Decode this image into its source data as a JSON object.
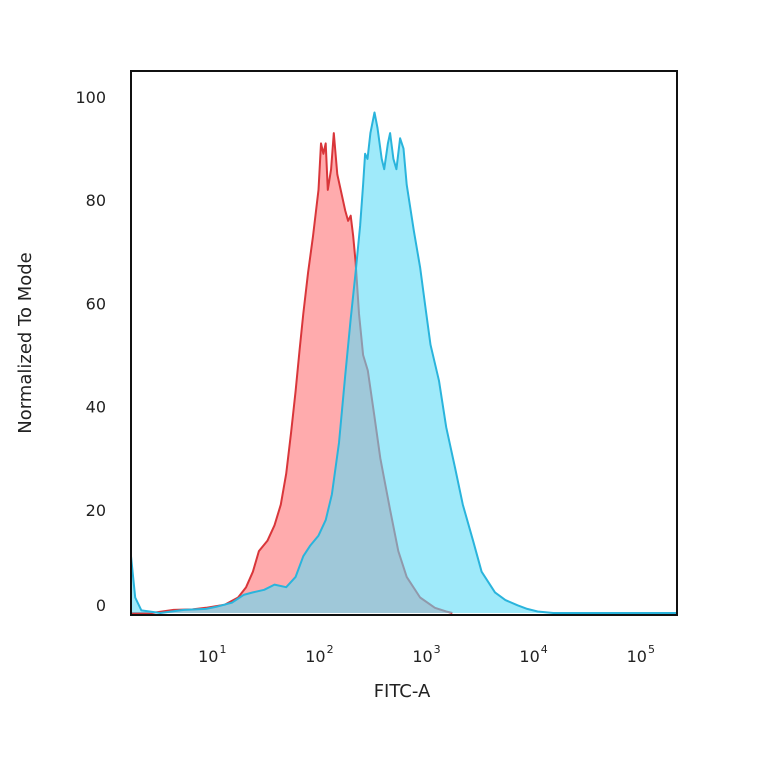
{
  "chart_data": {
    "type": "area",
    "xlabel": "FITC-A",
    "ylabel": "Normalized To Mode",
    "xscale": "log",
    "xlim": [
      1.6,
      200000
    ],
    "ylim": [
      0,
      105
    ],
    "yticks": [
      0,
      20,
      40,
      60,
      80,
      100
    ],
    "xticks": [
      {
        "value": 10,
        "base": "10",
        "exp": "1"
      },
      {
        "value": 100,
        "base": "10",
        "exp": "2"
      },
      {
        "value": 1000,
        "base": "10",
        "exp": "3"
      },
      {
        "value": 10000,
        "base": "10",
        "exp": "4"
      },
      {
        "value": 100000,
        "base": "10",
        "exp": "5"
      }
    ],
    "grid": false,
    "legend": "none",
    "series": [
      {
        "color_fill": "#ff8a8e",
        "color_line": "#d9363a",
        "opacity": 0.72,
        "points": [
          [
            1.6,
            0
          ],
          [
            2.5,
            0
          ],
          [
            4,
            0.6
          ],
          [
            6,
            0.7
          ],
          [
            8,
            1.0
          ],
          [
            12,
            1.6
          ],
          [
            16,
            3.0
          ],
          [
            19,
            5
          ],
          [
            22,
            8
          ],
          [
            25,
            12
          ],
          [
            30,
            14
          ],
          [
            35,
            17
          ],
          [
            40,
            21
          ],
          [
            45,
            27
          ],
          [
            50,
            35
          ],
          [
            55,
            43
          ],
          [
            60,
            51
          ],
          [
            65,
            58
          ],
          [
            72,
            66
          ],
          [
            80,
            73
          ],
          [
            90,
            82
          ],
          [
            95,
            91
          ],
          [
            100,
            89
          ],
          [
            105,
            91
          ],
          [
            110,
            82
          ],
          [
            118,
            86
          ],
          [
            125,
            93
          ],
          [
            135,
            85
          ],
          [
            145,
            82
          ],
          [
            160,
            78
          ],
          [
            170,
            76
          ],
          [
            180,
            77
          ],
          [
            190,
            73
          ],
          [
            200,
            68
          ],
          [
            215,
            58
          ],
          [
            235,
            50
          ],
          [
            260,
            47
          ],
          [
            300,
            38
          ],
          [
            340,
            30
          ],
          [
            370,
            26
          ],
          [
            420,
            20
          ],
          [
            500,
            12
          ],
          [
            600,
            7
          ],
          [
            800,
            3
          ],
          [
            1100,
            1
          ],
          [
            1400,
            0.3
          ],
          [
            1600,
            0
          ]
        ]
      },
      {
        "color_fill": "#5fdcf7",
        "color_line": "#2ab4dc",
        "opacity": 0.6,
        "points": [
          [
            1.6,
            11
          ],
          [
            1.75,
            3
          ],
          [
            2.0,
            0.5
          ],
          [
            3,
            0
          ],
          [
            5,
            0.6
          ],
          [
            8,
            0.8
          ],
          [
            10,
            1.2
          ],
          [
            14,
            2
          ],
          [
            18,
            3.5
          ],
          [
            22,
            4
          ],
          [
            28,
            4.5
          ],
          [
            35,
            5.5
          ],
          [
            45,
            5
          ],
          [
            55,
            7
          ],
          [
            65,
            11
          ],
          [
            75,
            13
          ],
          [
            90,
            15
          ],
          [
            105,
            18
          ],
          [
            120,
            23
          ],
          [
            140,
            33
          ],
          [
            160,
            46
          ],
          [
            180,
            57
          ],
          [
            200,
            66
          ],
          [
            220,
            75
          ],
          [
            235,
            83
          ],
          [
            245,
            89
          ],
          [
            258,
            88
          ],
          [
            275,
            93
          ],
          [
            300,
            97
          ],
          [
            320,
            94
          ],
          [
            350,
            88
          ],
          [
            370,
            86
          ],
          [
            400,
            91
          ],
          [
            420,
            93
          ],
          [
            450,
            88
          ],
          [
            480,
            86
          ],
          [
            520,
            92
          ],
          [
            560,
            90
          ],
          [
            600,
            83
          ],
          [
            700,
            74
          ],
          [
            800,
            67
          ],
          [
            900,
            59
          ],
          [
            1000,
            52
          ],
          [
            1200,
            45
          ],
          [
            1400,
            36
          ],
          [
            1700,
            28
          ],
          [
            2000,
            21
          ],
          [
            2500,
            14
          ],
          [
            3000,
            8
          ],
          [
            4000,
            4
          ],
          [
            5000,
            2.5
          ],
          [
            6500,
            1.5
          ],
          [
            8000,
            0.8
          ],
          [
            10000,
            0.3
          ],
          [
            14000,
            0
          ],
          [
            200000,
            0
          ]
        ]
      }
    ]
  }
}
